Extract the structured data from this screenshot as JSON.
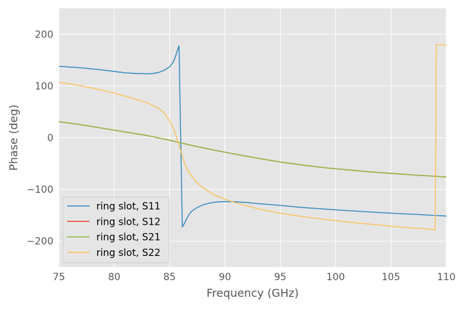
{
  "chart_data": {
    "type": "line",
    "title": "",
    "xlabel": "Frequency (GHz)",
    "ylabel": "Phase (deg)",
    "xlim": [
      75,
      110
    ],
    "ylim": [
      -250,
      250
    ],
    "xticks": [
      75,
      80,
      85,
      90,
      95,
      100,
      105,
      110
    ],
    "yticks": [
      -200,
      -100,
      0,
      100,
      200
    ],
    "ytick_labels": [
      "−200",
      "−100",
      "0",
      "100",
      "200"
    ],
    "grid": true,
    "legend_position": "lower-left",
    "background": "#e5e5e5",
    "series": [
      {
        "name": "ring slot, S11",
        "color": "#348abd",
        "segments": [
          [
            [
              75,
              138
            ],
            [
              76,
              136.5
            ],
            [
              77,
              135
            ],
            [
              78,
              133
            ],
            [
              79,
              130.5
            ],
            [
              80,
              128
            ],
            [
              81,
              125.5
            ],
            [
              82,
              124
            ],
            [
              83,
              123.5
            ],
            [
              83.5,
              124
            ],
            [
              84,
              126
            ],
            [
              84.5,
              130
            ],
            [
              85,
              137
            ],
            [
              85.3,
              145
            ],
            [
              85.5,
              155
            ],
            [
              85.7,
              168
            ],
            [
              85.85,
              178
            ]
          ],
          [
            [
              85.85,
              178
            ],
            [
              86.15,
              -173
            ]
          ],
          [
            [
              86.15,
              -173
            ],
            [
              86.4,
              -163
            ],
            [
              86.7,
              -150
            ],
            [
              87,
              -142
            ],
            [
              87.5,
              -135
            ],
            [
              88,
              -130
            ],
            [
              88.5,
              -127
            ],
            [
              89,
              -125
            ],
            [
              89.5,
              -124
            ],
            [
              90,
              -123.5
            ],
            [
              91,
              -124
            ],
            [
              92,
              -125.5
            ],
            [
              93,
              -127.5
            ],
            [
              95,
              -131
            ],
            [
              97,
              -135
            ],
            [
              100,
              -139.5
            ],
            [
              103,
              -143.5
            ],
            [
              105,
              -146
            ],
            [
              107,
              -148
            ],
            [
              110,
              -151.5
            ]
          ]
        ]
      },
      {
        "name": "ring slot, S12",
        "color": "#e24a33",
        "segments": [
          [
            [
              75,
              31
            ],
            [
              77,
              25
            ],
            [
              79,
              18
            ],
            [
              81,
              11
            ],
            [
              83,
              4
            ],
            [
              85,
              -5
            ],
            [
              87,
              -15
            ],
            [
              89,
              -24
            ],
            [
              91,
              -32
            ],
            [
              93,
              -40
            ],
            [
              95,
              -47
            ],
            [
              97,
              -53
            ],
            [
              99,
              -58
            ],
            [
              101,
              -62
            ],
            [
              103,
              -66
            ],
            [
              105,
              -69
            ],
            [
              107,
              -72
            ],
            [
              110,
              -76
            ]
          ]
        ]
      },
      {
        "name": "ring slot, S21",
        "color": "#8eba42",
        "segments": [
          [
            [
              75,
              31
            ],
            [
              77,
              25
            ],
            [
              79,
              18
            ],
            [
              81,
              11
            ],
            [
              83,
              4
            ],
            [
              85,
              -5
            ],
            [
              87,
              -15
            ],
            [
              89,
              -24
            ],
            [
              91,
              -32
            ],
            [
              93,
              -40
            ],
            [
              95,
              -47
            ],
            [
              97,
              -53
            ],
            [
              99,
              -58
            ],
            [
              101,
              -62
            ],
            [
              103,
              -66
            ],
            [
              105,
              -69
            ],
            [
              107,
              -72
            ],
            [
              110,
              -76
            ]
          ]
        ]
      },
      {
        "name": "ring slot, S22",
        "color": "#fbc15e",
        "segments": [
          [
            [
              75,
              107
            ],
            [
              76,
              104
            ],
            [
              77,
              100
            ],
            [
              78,
              96
            ],
            [
              79,
              91
            ],
            [
              80,
              86
            ],
            [
              81,
              80
            ],
            [
              82,
              74
            ],
            [
              83,
              67
            ],
            [
              84,
              57
            ],
            [
              84.5,
              48
            ],
            [
              85,
              33
            ],
            [
              85.3,
              20
            ],
            [
              85.6,
              3
            ],
            [
              85.9,
              -18
            ],
            [
              86.2,
              -40
            ],
            [
              86.5,
              -58
            ],
            [
              87,
              -75
            ],
            [
              87.5,
              -87
            ],
            [
              88,
              -97
            ],
            [
              89,
              -110
            ],
            [
              90,
              -119
            ],
            [
              91,
              -126
            ],
            [
              92,
              -132
            ],
            [
              93,
              -137.5
            ],
            [
              95,
              -146
            ],
            [
              97,
              -152.5
            ],
            [
              100,
              -160.5
            ],
            [
              102,
              -165
            ],
            [
              104,
              -169
            ],
            [
              106,
              -173
            ],
            [
              108,
              -176
            ],
            [
              109,
              -178
            ]
          ],
          [
            [
              109,
              -178
            ],
            [
              109.1,
              180
            ]
          ],
          [
            [
              109.1,
              180
            ],
            [
              110,
              179
            ]
          ]
        ]
      }
    ]
  }
}
